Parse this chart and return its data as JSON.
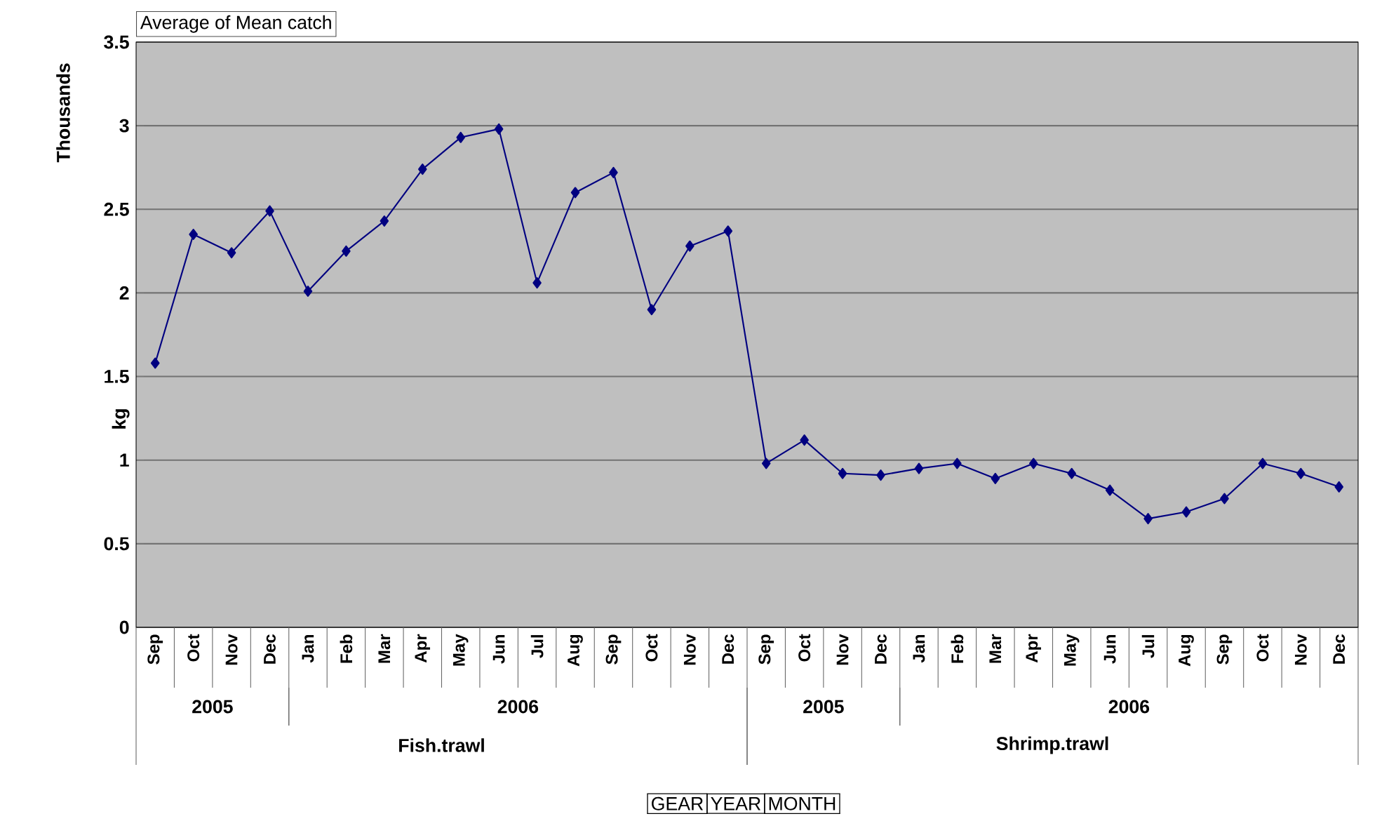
{
  "chart_data": {
    "type": "line",
    "ylabel": "kg",
    "categories": [
      "Sep",
      "Oct",
      "Nov",
      "Dec",
      "Jan",
      "Feb",
      "Mar",
      "Apr",
      "May",
      "Jun",
      "Jul",
      "Aug",
      "Sep",
      "Oct",
      "Nov",
      "Dec",
      "Sep",
      "Oct",
      "Nov",
      "Dec",
      "Jan",
      "Feb",
      "Mar",
      "Apr",
      "May",
      "Jun",
      "Jul",
      "Aug",
      "Sep",
      "Oct",
      "Nov",
      "Dec"
    ],
    "values": [
      1.58,
      2.35,
      2.24,
      2.49,
      2.01,
      2.25,
      2.43,
      2.74,
      2.93,
      2.98,
      2.06,
      2.6,
      2.72,
      1.9,
      2.28,
      2.37,
      0.98,
      1.12,
      0.92,
      0.91,
      0.95,
      0.98,
      0.89,
      0.98,
      0.92,
      0.82,
      0.65,
      0.69,
      0.77,
      0.98,
      0.92,
      0.84
    ],
    "color": "#000080",
    "marker": "diamond",
    "line_style": "solid",
    "grid": "y",
    "ylim": [
      0,
      3.5
    ],
    "yticks": [
      0,
      0.5,
      1,
      1.5,
      2,
      2.5,
      3,
      3.5
    ],
    "annotations": [
      "Average of Mean catch",
      "Thousands",
      "2005",
      "2006",
      "2005",
      "2006",
      "Fish.trawl",
      "Shrimp.trawl",
      "GEAR",
      "YEAR",
      "MONTH"
    ]
  }
}
